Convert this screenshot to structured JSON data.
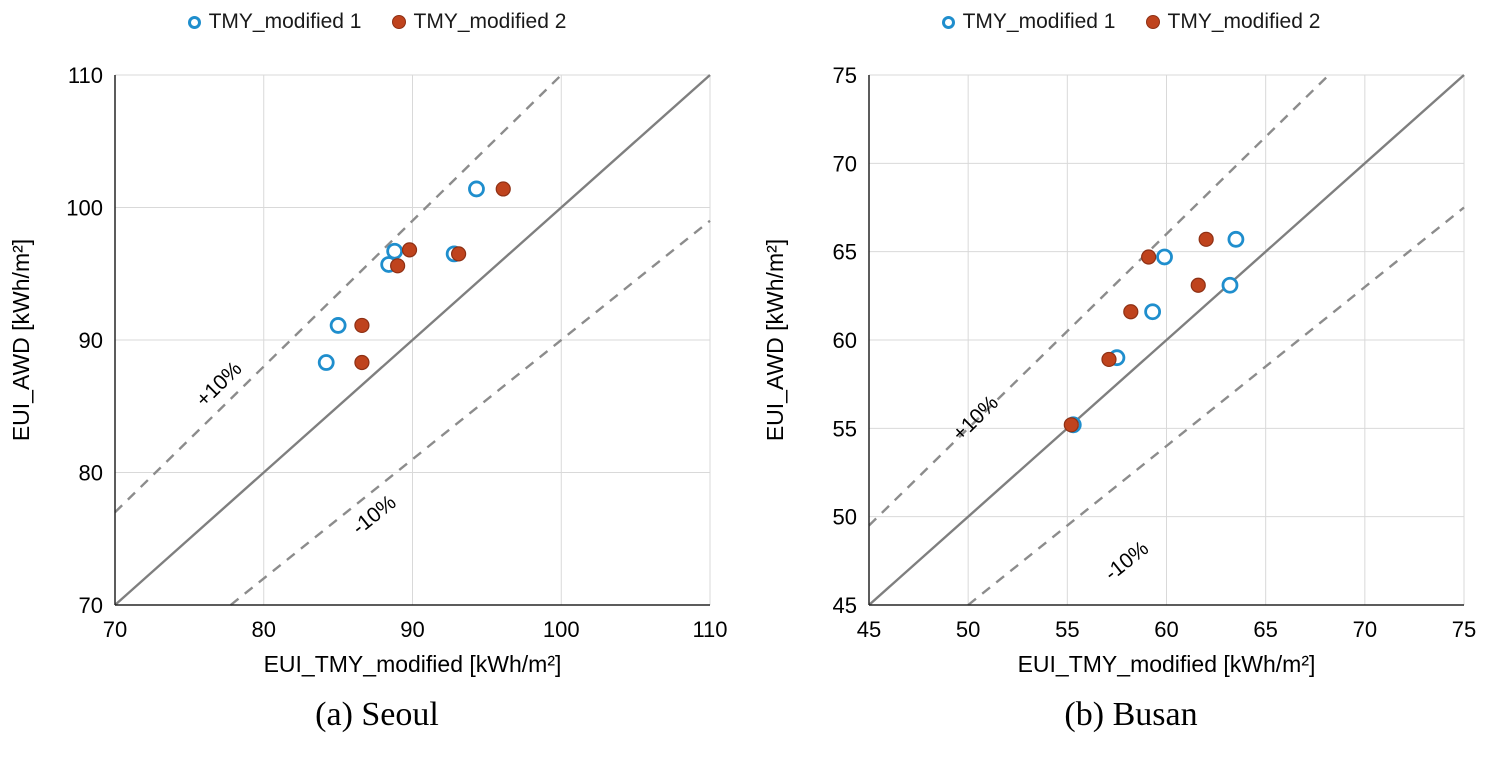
{
  "legend": {
    "items": [
      {
        "label": "TMY_modified 1",
        "marker": "open-circle",
        "color": "#1F8ECD"
      },
      {
        "label": "TMY_modified 2",
        "marker": "filled-circle",
        "color": "#BF431D",
        "stroke": "#8E3014"
      }
    ]
  },
  "style": {
    "grid_color": "#d9d9d9",
    "axis_color": "#262626",
    "identity_color": "#7f7f7f",
    "tolerance_color": "#8c8c8c"
  },
  "chart_data": [
    {
      "type": "scatter",
      "caption": "(a) Seoul",
      "xlabel": "EUI_TMY_modified [kWh/m²]",
      "ylabel": "EUI_AWD [kWh/m²]",
      "xlim": [
        70,
        110
      ],
      "xstep": 10,
      "ylim": [
        70,
        110
      ],
      "ystep": 10,
      "grid": true,
      "identity_line": true,
      "legend_position": "top",
      "tolerance_lines": [
        {
          "factor": 1.1,
          "label": "+10%",
          "label_x": 77.3,
          "label_y": 86.3
        },
        {
          "factor": 0.9,
          "label": "-10%",
          "label_x": 87.7,
          "label_y": 76.4
        }
      ],
      "series": [
        {
          "name": "TMY_modified 1",
          "marker": "open-circle",
          "color": "#1F8ECD",
          "points": [
            [
              84.2,
              88.3
            ],
            [
              85.0,
              91.1
            ],
            [
              88.4,
              95.7
            ],
            [
              88.8,
              96.7
            ],
            [
              92.8,
              96.5
            ],
            [
              94.3,
              101.4
            ]
          ]
        },
        {
          "name": "TMY_modified 2",
          "marker": "filled-circle",
          "color": "#BF431D",
          "stroke": "#8E3014",
          "points": [
            [
              86.6,
              88.3
            ],
            [
              86.6,
              91.1
            ],
            [
              89.0,
              95.6
            ],
            [
              89.8,
              96.8
            ],
            [
              93.1,
              96.5
            ],
            [
              96.1,
              101.4
            ]
          ]
        }
      ]
    },
    {
      "type": "scatter",
      "caption": "(b) Busan",
      "xlabel": "EUI_TMY_modified [kWh/m²]",
      "ylabel": "EUI_AWD [kWh/m²]",
      "xlim": [
        45,
        75
      ],
      "xstep": 5,
      "ylim": [
        45,
        75
      ],
      "ystep": 5,
      "grid": true,
      "identity_line": true,
      "legend_position": "top",
      "tolerance_lines": [
        {
          "factor": 1.1,
          "label": "+10%",
          "label_x": 50.6,
          "label_y": 55.3
        },
        {
          "factor": 0.9,
          "label": "-10%",
          "label_x": 58.2,
          "label_y": 47.2
        }
      ],
      "series": [
        {
          "name": "TMY_modified 1",
          "marker": "open-circle",
          "color": "#1F8ECD",
          "points": [
            [
              55.3,
              55.2
            ],
            [
              57.5,
              59.0
            ],
            [
              59.3,
              61.6
            ],
            [
              59.9,
              64.7
            ],
            [
              63.2,
              63.1
            ],
            [
              63.5,
              65.7
            ]
          ]
        },
        {
          "name": "TMY_modified 2",
          "marker": "filled-circle",
          "color": "#BF431D",
          "stroke": "#8E3014",
          "points": [
            [
              55.2,
              55.2
            ],
            [
              57.1,
              58.9
            ],
            [
              58.2,
              61.6
            ],
            [
              59.1,
              64.7
            ],
            [
              61.6,
              63.1
            ],
            [
              62.0,
              65.7
            ]
          ]
        }
      ]
    }
  ]
}
